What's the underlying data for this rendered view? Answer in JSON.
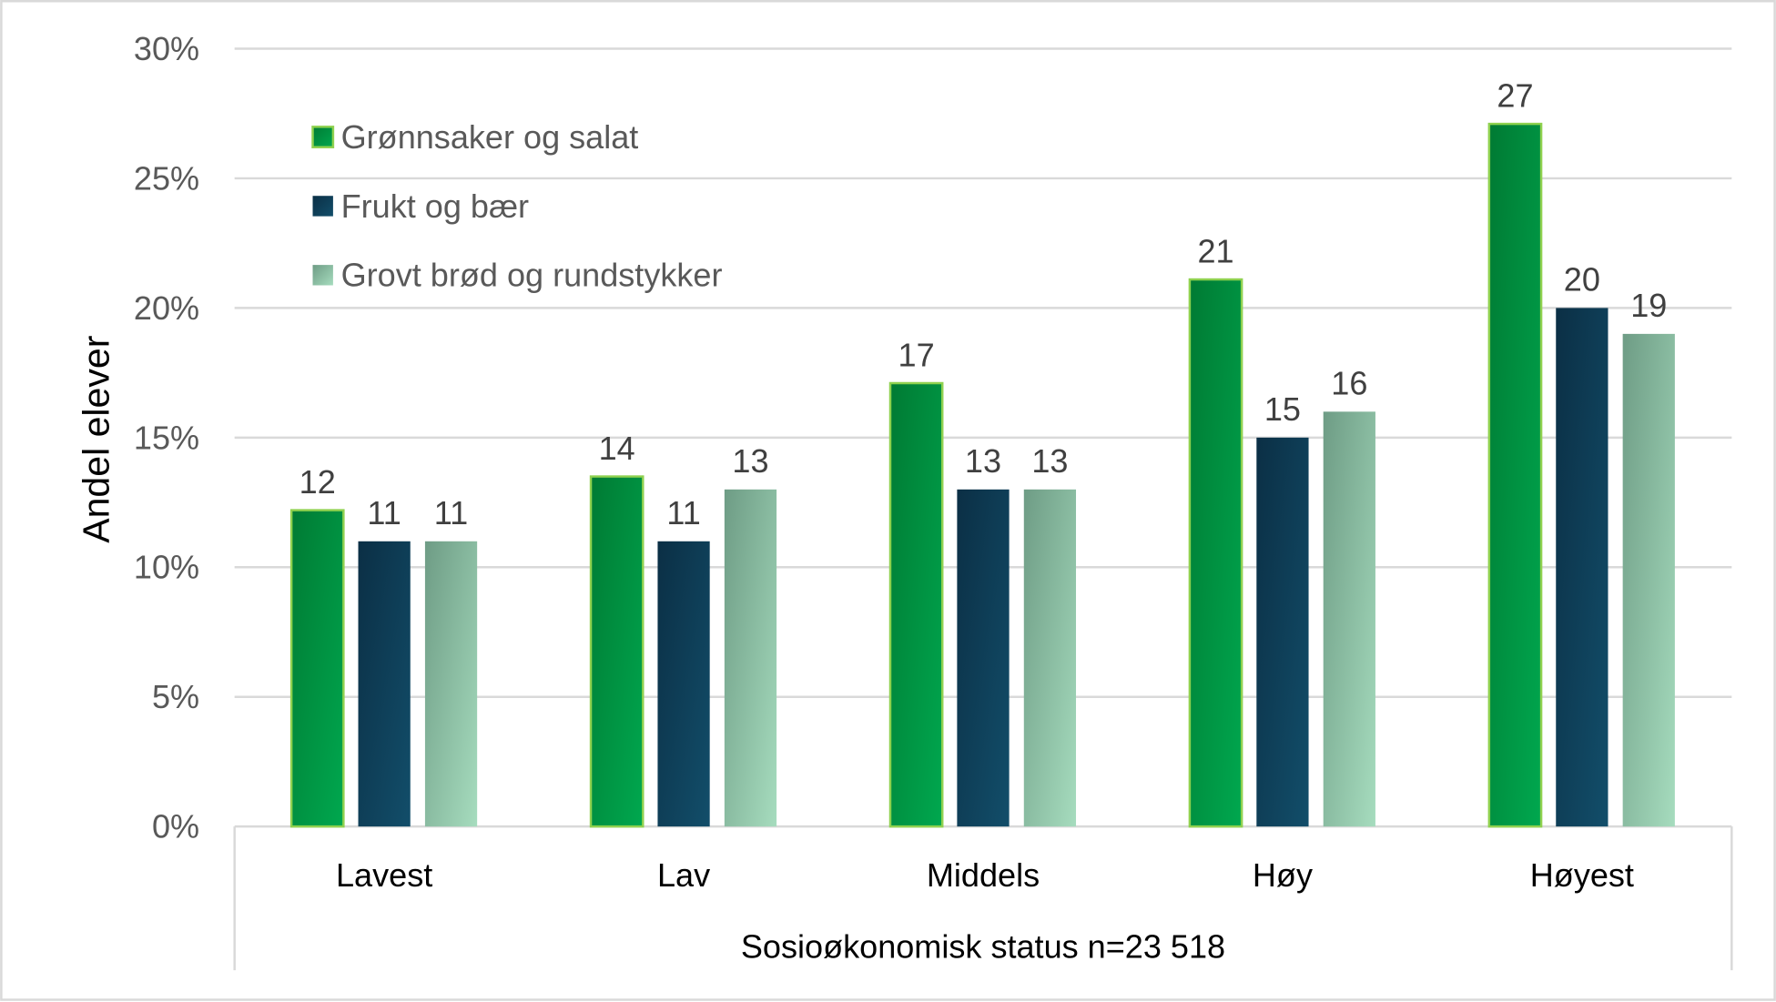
{
  "chart_data": {
    "type": "bar",
    "categories": [
      "Lavest",
      "Lav",
      "Middels",
      "Høy",
      "Høyest"
    ],
    "series": [
      {
        "name": "Grønnsaker og salat",
        "values": [
          12.2,
          13.5,
          17.1,
          21.1,
          27.1
        ],
        "labels": [
          "12",
          "14",
          "17",
          "21",
          "27"
        ],
        "color": "#00a84f",
        "color_dark": "#007a33",
        "border": "#8fd14f"
      },
      {
        "name": "Frukt og bær",
        "values": [
          11,
          11,
          13,
          15,
          20
        ],
        "labels": [
          "11",
          "11",
          "13",
          "15",
          "20"
        ],
        "color": "#124e6a",
        "color_dark": "#0b2f45"
      },
      {
        "name": "Grovt brød og rundstykker",
        "values": [
          11,
          13,
          13,
          16,
          19
        ],
        "labels": [
          "11",
          "13",
          "13",
          "16",
          "19"
        ],
        "color": "#a6dcbe",
        "color_dark": "#6e9c85"
      }
    ],
    "xlabel": "Sosioøkonomisk status n=23 518",
    "ylabel": "Andel elever",
    "ylim": [
      0,
      30
    ],
    "yticks": [
      "0%",
      "5%",
      "10%",
      "15%",
      "20%",
      "25%",
      "30%"
    ],
    "grid": true,
    "legend_position": "top-left"
  }
}
